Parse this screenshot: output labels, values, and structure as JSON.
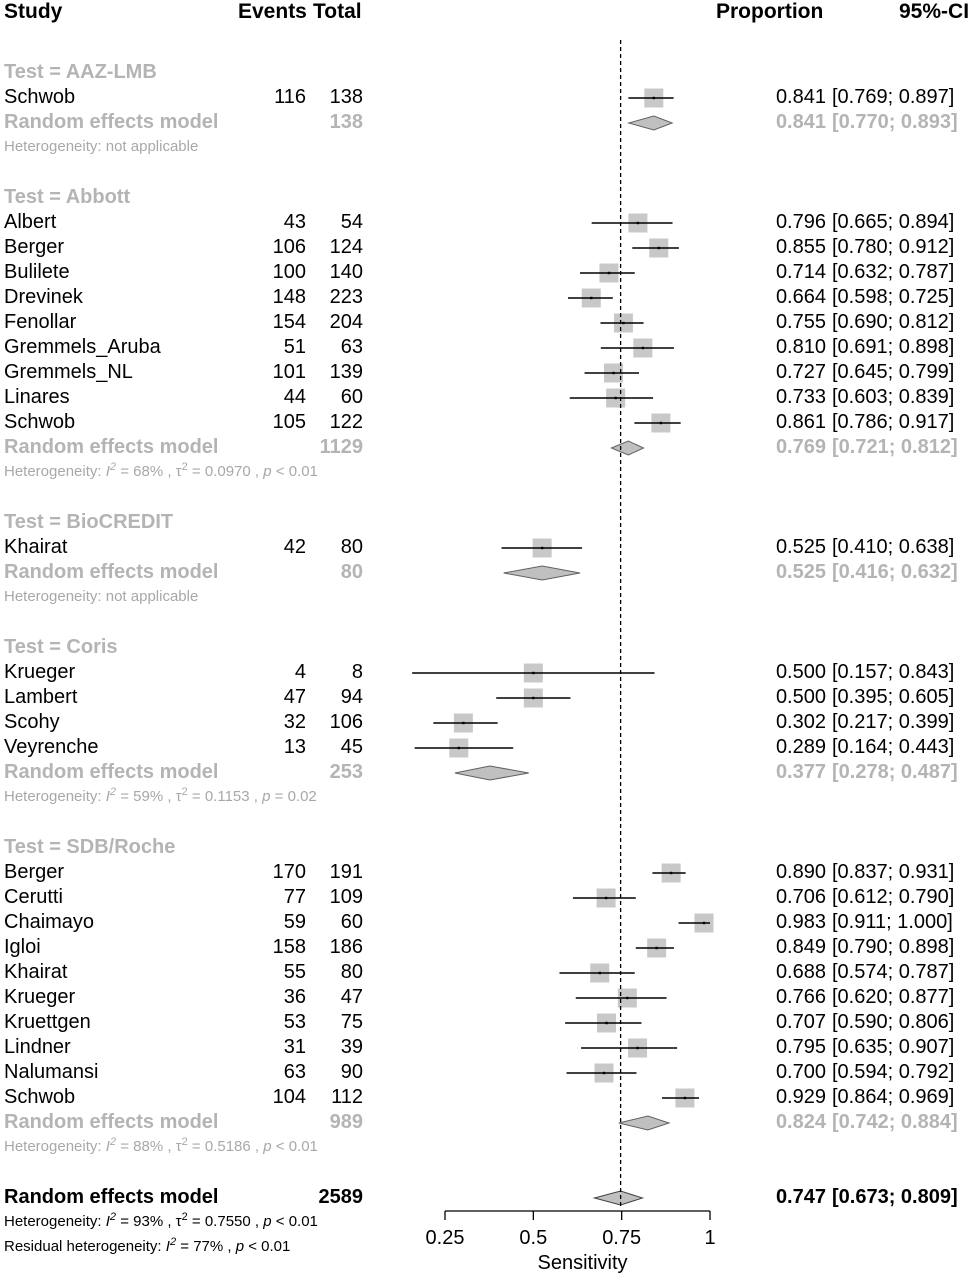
{
  "chart_data": {
    "type": "forest",
    "xlabel": "Sensitivity",
    "xlim": [
      0.25,
      1
    ],
    "ticks": [
      0.25,
      0.5,
      0.75,
      1
    ],
    "tick_labels": [
      "0.25",
      "0.5",
      "0.75",
      "1"
    ],
    "reference_line": 0.747,
    "headers": {
      "study": "Study",
      "events": "Events",
      "total": "Total",
      "proportion": "Proportion",
      "ci": "95%-CI"
    },
    "groups": [
      {
        "label": "Test = AAZ-LMB",
        "studies": [
          {
            "name": "Schwob",
            "events": "116",
            "total": "138",
            "prop": "0.841",
            "ci": "[0.769; 0.897]",
            "p": 0.841,
            "lo": 0.769,
            "hi": 0.897,
            "w": 1.0
          }
        ],
        "pooled": {
          "label": "Random effects model",
          "total": "138",
          "prop": "0.841",
          "ci": "[0.770; 0.893]",
          "p": 0.841,
          "lo": 0.77,
          "hi": 0.893
        },
        "het": {
          "prefix": "Heterogeneity: ",
          "text": "not applicable"
        }
      },
      {
        "label": "Test = Abbott",
        "studies": [
          {
            "name": "Albert",
            "events": "43",
            "total": "54",
            "prop": "0.796",
            "ci": "[0.665; 0.894]",
            "p": 0.796,
            "lo": 0.665,
            "hi": 0.894,
            "w": 1.0
          },
          {
            "name": "Berger",
            "events": "106",
            "total": "124",
            "prop": "0.855",
            "ci": "[0.780; 0.912]",
            "p": 0.855,
            "lo": 0.78,
            "hi": 0.912,
            "w": 1.0
          },
          {
            "name": "Bulilete",
            "events": "100",
            "total": "140",
            "prop": "0.714",
            "ci": "[0.632; 0.787]",
            "p": 0.714,
            "lo": 0.632,
            "hi": 0.787,
            "w": 1.0
          },
          {
            "name": "Drevinek",
            "events": "148",
            "total": "223",
            "prop": "0.664",
            "ci": "[0.598; 0.725]",
            "p": 0.664,
            "lo": 0.598,
            "hi": 0.725,
            "w": 1.0
          },
          {
            "name": "Fenollar",
            "events": "154",
            "total": "204",
            "prop": "0.755",
            "ci": "[0.690; 0.812]",
            "p": 0.755,
            "lo": 0.69,
            "hi": 0.812,
            "w": 1.0
          },
          {
            "name": "Gremmels_Aruba",
            "events": "51",
            "total": "63",
            "prop": "0.810",
            "ci": "[0.691; 0.898]",
            "p": 0.81,
            "lo": 0.691,
            "hi": 0.898,
            "w": 1.0
          },
          {
            "name": "Gremmels_NL",
            "events": "101",
            "total": "139",
            "prop": "0.727",
            "ci": "[0.645; 0.799]",
            "p": 0.727,
            "lo": 0.645,
            "hi": 0.799,
            "w": 1.0
          },
          {
            "name": "Linares",
            "events": "44",
            "total": "60",
            "prop": "0.733",
            "ci": "[0.603; 0.839]",
            "p": 0.733,
            "lo": 0.603,
            "hi": 0.839,
            "w": 1.0
          },
          {
            "name": "Schwob",
            "events": "105",
            "total": "122",
            "prop": "0.861",
            "ci": "[0.786; 0.917]",
            "p": 0.861,
            "lo": 0.786,
            "hi": 0.917,
            "w": 1.0
          }
        ],
        "pooled": {
          "label": "Random effects model",
          "total": "1129",
          "prop": "0.769",
          "ci": "[0.721; 0.812]",
          "p": 0.769,
          "lo": 0.721,
          "hi": 0.812
        },
        "het": {
          "prefix": "Heterogeneity: ",
          "i2": "68%",
          "tau2": "0.0970",
          "pval": "< 0.01"
        }
      },
      {
        "label": "Test = BioCREDIT",
        "studies": [
          {
            "name": "Khairat",
            "events": "42",
            "total": "80",
            "prop": "0.525",
            "ci": "[0.410; 0.638]",
            "p": 0.525,
            "lo": 0.41,
            "hi": 0.638,
            "w": 1.0
          }
        ],
        "pooled": {
          "label": "Random effects model",
          "total": "80",
          "prop": "0.525",
          "ci": "[0.416; 0.632]",
          "p": 0.525,
          "lo": 0.416,
          "hi": 0.632
        },
        "het": {
          "prefix": "Heterogeneity: ",
          "text": "not applicable"
        }
      },
      {
        "label": "Test = Coris",
        "studies": [
          {
            "name": "Krueger",
            "events": "4",
            "total": "8",
            "prop": "0.500",
            "ci": "[0.157; 0.843]",
            "p": 0.5,
            "lo": 0.157,
            "hi": 0.843,
            "w": 1.0
          },
          {
            "name": "Lambert",
            "events": "47",
            "total": "94",
            "prop": "0.500",
            "ci": "[0.395; 0.605]",
            "p": 0.5,
            "lo": 0.395,
            "hi": 0.605,
            "w": 1.0
          },
          {
            "name": "Scohy",
            "events": "32",
            "total": "106",
            "prop": "0.302",
            "ci": "[0.217; 0.399]",
            "p": 0.302,
            "lo": 0.217,
            "hi": 0.399,
            "w": 1.0
          },
          {
            "name": "Veyrenche",
            "events": "13",
            "total": "45",
            "prop": "0.289",
            "ci": "[0.164; 0.443]",
            "p": 0.289,
            "lo": 0.164,
            "hi": 0.443,
            "w": 1.0
          }
        ],
        "pooled": {
          "label": "Random effects model",
          "total": "253",
          "prop": "0.377",
          "ci": "[0.278; 0.487]",
          "p": 0.377,
          "lo": 0.278,
          "hi": 0.487
        },
        "het": {
          "prefix": "Heterogeneity: ",
          "i2": "59%",
          "tau2": "0.1153",
          "pval": "= 0.02"
        }
      },
      {
        "label": "Test = SDB/Roche",
        "studies": [
          {
            "name": "Berger",
            "events": "170",
            "total": "191",
            "prop": "0.890",
            "ci": "[0.837; 0.931]",
            "p": 0.89,
            "lo": 0.837,
            "hi": 0.931,
            "w": 1.0
          },
          {
            "name": "Cerutti",
            "events": "77",
            "total": "109",
            "prop": "0.706",
            "ci": "[0.612; 0.790]",
            "p": 0.706,
            "lo": 0.612,
            "hi": 0.79,
            "w": 1.0
          },
          {
            "name": "Chaimayo",
            "events": "59",
            "total": "60",
            "prop": "0.983",
            "ci": "[0.911; 1.000]",
            "p": 0.983,
            "lo": 0.911,
            "hi": 1.0,
            "w": 1.0
          },
          {
            "name": "Igloi",
            "events": "158",
            "total": "186",
            "prop": "0.849",
            "ci": "[0.790; 0.898]",
            "p": 0.849,
            "lo": 0.79,
            "hi": 0.898,
            "w": 1.0
          },
          {
            "name": "Khairat",
            "events": "55",
            "total": "80",
            "prop": "0.688",
            "ci": "[0.574; 0.787]",
            "p": 0.688,
            "lo": 0.574,
            "hi": 0.787,
            "w": 1.0
          },
          {
            "name": "Krueger",
            "events": "36",
            "total": "47",
            "prop": "0.766",
            "ci": "[0.620; 0.877]",
            "p": 0.766,
            "lo": 0.62,
            "hi": 0.877,
            "w": 1.0
          },
          {
            "name": "Kruettgen",
            "events": "53",
            "total": "75",
            "prop": "0.707",
            "ci": "[0.590; 0.806]",
            "p": 0.707,
            "lo": 0.59,
            "hi": 0.806,
            "w": 1.0
          },
          {
            "name": "Lindner",
            "events": "31",
            "total": "39",
            "prop": "0.795",
            "ci": "[0.635; 0.907]",
            "p": 0.795,
            "lo": 0.635,
            "hi": 0.907,
            "w": 1.0
          },
          {
            "name": "Nalumansi",
            "events": "63",
            "total": "90",
            "prop": "0.700",
            "ci": "[0.594; 0.792]",
            "p": 0.7,
            "lo": 0.594,
            "hi": 0.792,
            "w": 1.0
          },
          {
            "name": "Schwob",
            "events": "104",
            "total": "112",
            "prop": "0.929",
            "ci": "[0.864; 0.969]",
            "p": 0.929,
            "lo": 0.864,
            "hi": 0.969,
            "w": 1.0
          }
        ],
        "pooled": {
          "label": "Random effects model",
          "total": "989",
          "prop": "0.824",
          "ci": "[0.742; 0.884]",
          "p": 0.824,
          "lo": 0.742,
          "hi": 0.884
        },
        "het": {
          "prefix": "Heterogeneity: ",
          "i2": "88%",
          "tau2": "0.5186",
          "pval": "< 0.01"
        }
      }
    ],
    "overall": {
      "label": "Random effects model",
      "total": "2589",
      "prop": "0.747",
      "ci": "[0.673; 0.809]",
      "p": 0.747,
      "lo": 0.673,
      "hi": 0.809,
      "het": {
        "prefix": "Heterogeneity: ",
        "i2": "93%",
        "tau2": "0.7550",
        "pval": "< 0.01"
      },
      "resid": {
        "prefix": "Residual heterogeneity: ",
        "i2": "77%",
        "pval": "< 0.01"
      }
    },
    "colors": {
      "box": "#c8c8c8",
      "diamond": "#c0c0c0",
      "grey_text": "#b4b4b4",
      "line": "#000000"
    }
  }
}
